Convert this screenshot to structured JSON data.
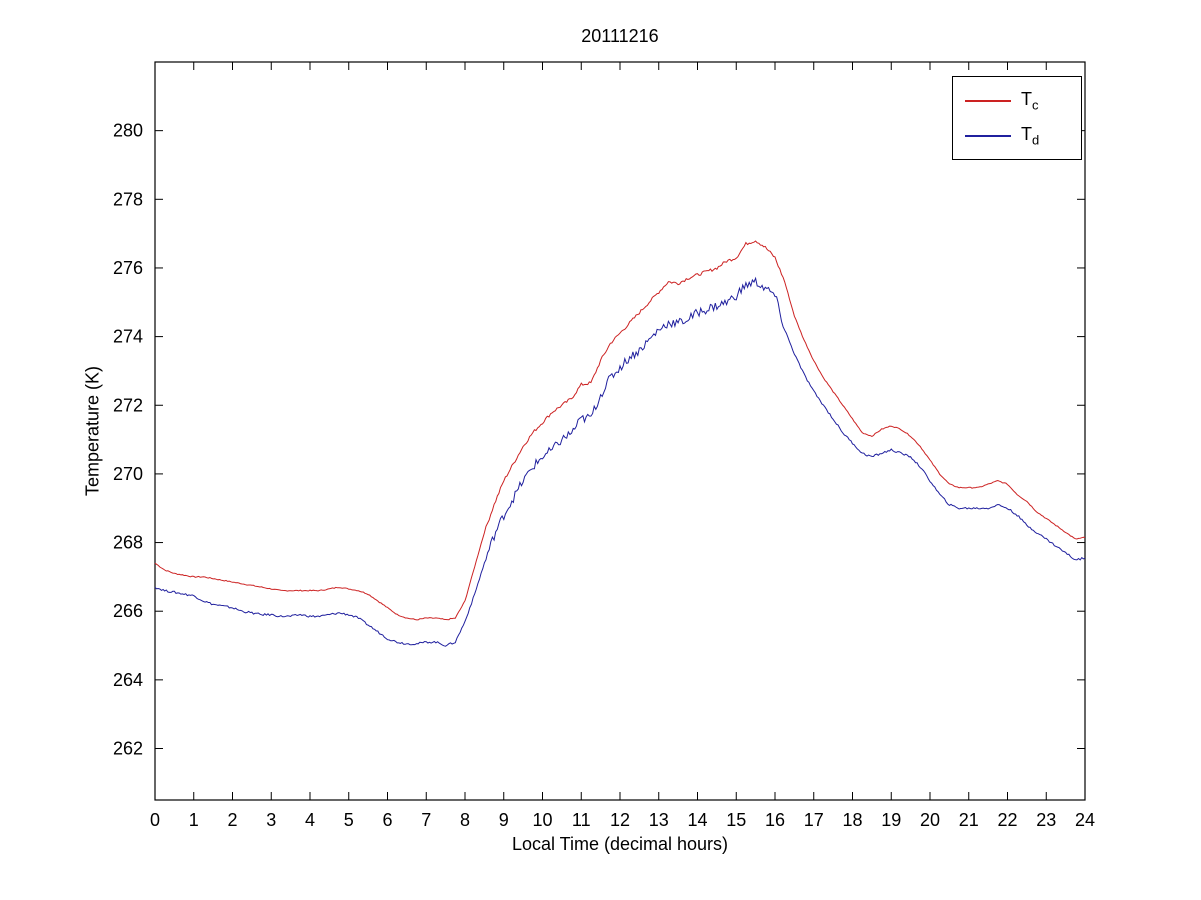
{
  "chart_data": {
    "type": "line",
    "title": "20111216",
    "xlabel": "Local Time (decimal hours)",
    "ylabel": "Temperature (K)",
    "xlim": [
      0,
      24
    ],
    "ylim": [
      260.5,
      282
    ],
    "x_ticks": [
      0,
      1,
      2,
      3,
      4,
      5,
      6,
      7,
      8,
      9,
      10,
      11,
      12,
      13,
      14,
      15,
      16,
      17,
      18,
      19,
      20,
      21,
      22,
      23,
      24
    ],
    "y_ticks": [
      262,
      264,
      266,
      268,
      270,
      272,
      274,
      276,
      278,
      280
    ],
    "grid": false,
    "legend_position": "top-right-inside",
    "t_start": 0,
    "t_step": 0.25,
    "series": [
      {
        "name": "Tc",
        "label_base": "T",
        "label_sub": "c",
        "color": "#cc2222",
        "noise_base": 0.015,
        "noise_day": 0.03,
        "values": [
          267.4,
          267.2,
          267.1,
          267.05,
          267.0,
          267.0,
          266.95,
          266.9,
          266.85,
          266.8,
          266.75,
          266.7,
          266.65,
          266.6,
          266.6,
          266.6,
          266.6,
          266.6,
          266.65,
          266.7,
          266.65,
          266.6,
          266.5,
          266.3,
          266.1,
          265.9,
          265.8,
          265.75,
          265.8,
          265.8,
          265.75,
          265.8,
          266.3,
          267.3,
          268.3,
          269.1,
          269.8,
          270.3,
          270.8,
          271.2,
          271.5,
          271.8,
          272.0,
          272.2,
          272.6,
          272.65,
          273.3,
          273.8,
          274.1,
          274.4,
          274.7,
          275.0,
          275.3,
          275.6,
          275.55,
          275.7,
          275.8,
          275.9,
          276.0,
          276.2,
          276.3,
          276.7,
          276.8,
          276.6,
          276.3,
          275.6,
          274.6,
          273.9,
          273.3,
          272.8,
          272.4,
          272.0,
          271.6,
          271.2,
          271.1,
          271.3,
          271.4,
          271.3,
          271.1,
          270.8,
          270.4,
          270.0,
          269.7,
          269.6,
          269.6,
          269.6,
          269.7,
          269.8,
          269.7,
          269.4,
          269.2,
          268.9,
          268.7,
          268.5,
          268.3,
          268.1,
          268.15
        ]
      },
      {
        "name": "Td",
        "label_base": "T",
        "label_sub": "d",
        "color": "#20209e",
        "noise_base": 0.03,
        "noise_day": 0.1,
        "values": [
          266.7,
          266.6,
          266.55,
          266.5,
          266.45,
          266.3,
          266.2,
          266.15,
          266.1,
          266.0,
          265.95,
          265.9,
          265.9,
          265.85,
          265.85,
          265.9,
          265.85,
          265.85,
          265.9,
          265.95,
          265.9,
          265.8,
          265.6,
          265.4,
          265.2,
          265.1,
          265.05,
          265.05,
          265.1,
          265.1,
          265.0,
          265.1,
          265.7,
          266.5,
          267.4,
          268.2,
          268.8,
          269.3,
          269.8,
          270.2,
          270.5,
          270.7,
          271.0,
          271.2,
          271.6,
          271.65,
          272.3,
          272.8,
          273.1,
          273.4,
          273.6,
          273.9,
          274.2,
          274.4,
          274.4,
          274.5,
          274.7,
          274.8,
          274.9,
          275.0,
          275.2,
          275.5,
          275.6,
          275.4,
          275.2,
          274.2,
          273.5,
          272.9,
          272.4,
          272.0,
          271.6,
          271.2,
          270.9,
          270.6,
          270.5,
          270.6,
          270.7,
          270.6,
          270.5,
          270.2,
          269.8,
          269.4,
          269.1,
          269.0,
          269.0,
          269.0,
          269.0,
          269.1,
          269.0,
          268.8,
          268.5,
          268.3,
          268.1,
          267.9,
          267.7,
          267.5,
          267.55
        ]
      }
    ]
  }
}
